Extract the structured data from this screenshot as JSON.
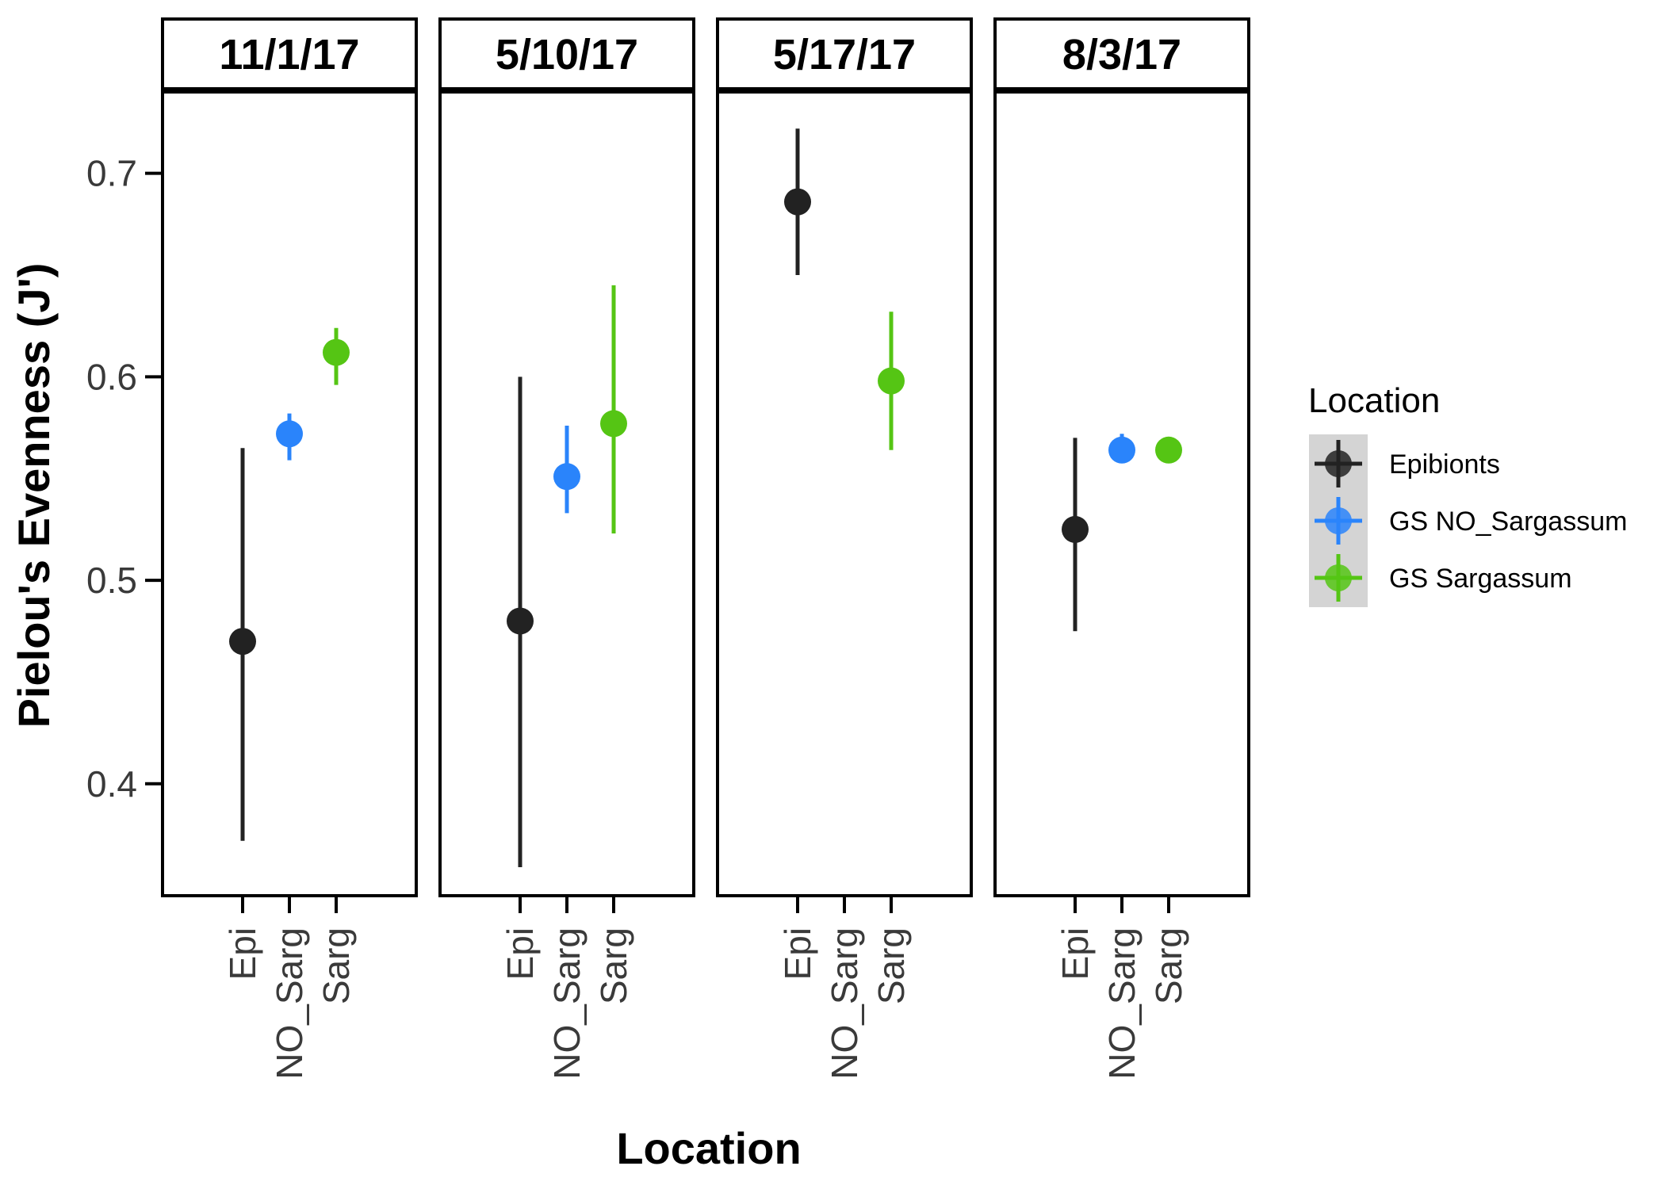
{
  "chart_data": {
    "type": "scatter",
    "subtype": "faceted point-range (mean with error bars)",
    "xlabel": "Location",
    "ylabel": "Pielou's Evenness (J')",
    "ylim": [
      0.345,
      0.74
    ],
    "yticks": [
      "0.4",
      "0.5",
      "0.6",
      "0.7"
    ],
    "categories": [
      "Epi",
      "NO_Sarg",
      "Sarg"
    ],
    "grid": false,
    "legend": {
      "title": "Location",
      "position": "right",
      "entries": [
        {
          "label": "Epibionts",
          "color": "#222222"
        },
        {
          "label": "GS NO_Sargassum",
          "color": "#2a84fb"
        },
        {
          "label": "GS Sargassum",
          "color": "#55c514"
        }
      ]
    },
    "facets": [
      {
        "label": "11/1/17",
        "points": [
          {
            "category": "Epi",
            "series": 0,
            "y": 0.47,
            "ymin": 0.372,
            "ymax": 0.565
          },
          {
            "category": "NO_Sarg",
            "series": 1,
            "y": 0.572,
            "ymin": 0.559,
            "ymax": 0.582
          },
          {
            "category": "Sarg",
            "series": 2,
            "y": 0.612,
            "ymin": 0.596,
            "ymax": 0.624
          }
        ]
      },
      {
        "label": "5/10/17",
        "points": [
          {
            "category": "Epi",
            "series": 0,
            "y": 0.48,
            "ymin": 0.359,
            "ymax": 0.6
          },
          {
            "category": "NO_Sarg",
            "series": 1,
            "y": 0.551,
            "ymin": 0.533,
            "ymax": 0.576
          },
          {
            "category": "Sarg",
            "series": 2,
            "y": 0.577,
            "ymin": 0.523,
            "ymax": 0.645
          }
        ]
      },
      {
        "label": "5/17/17",
        "points": [
          {
            "category": "Epi",
            "series": 0,
            "y": 0.686,
            "ymin": 0.65,
            "ymax": 0.722
          },
          {
            "category": "Sarg",
            "series": 2,
            "y": 0.598,
            "ymin": 0.564,
            "ymax": 0.632
          }
        ]
      },
      {
        "label": "8/3/17",
        "points": [
          {
            "category": "Epi",
            "series": 0,
            "y": 0.525,
            "ymin": 0.475,
            "ymax": 0.57
          },
          {
            "category": "NO_Sarg",
            "series": 1,
            "y": 0.564,
            "ymin": 0.56,
            "ymax": 0.572
          },
          {
            "category": "Sarg",
            "series": 2,
            "y": 0.564,
            "ymin": 0.564,
            "ymax": 0.564
          }
        ]
      }
    ]
  }
}
